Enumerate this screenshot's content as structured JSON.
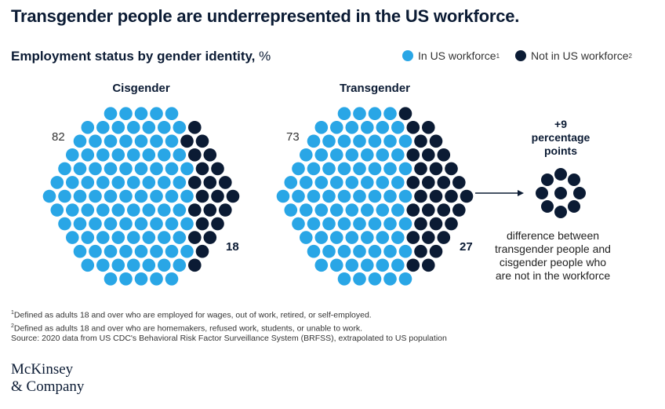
{
  "title": "Transgender people are underrepresented in the US workforce.",
  "subtitle": "Employment status by gender identity,",
  "subtitle_unit": "%",
  "legend": [
    {
      "label": "In US workforce",
      "sup": "1",
      "color": "#29a6e6"
    },
    {
      "label": "Not in US workforce",
      "sup": "2",
      "color": "#0b1b34"
    }
  ],
  "chart_data": {
    "type": "pie",
    "series": [
      {
        "name": "Cisgender",
        "values": [
          82,
          18
        ]
      },
      {
        "name": "Transgender",
        "values": [
          73,
          27
        ]
      }
    ],
    "categories": [
      "In US workforce",
      "Not in US workforce"
    ],
    "difference": {
      "value": "+9",
      "label": "percentage points",
      "dots": 9
    }
  },
  "labels": {
    "cis_in": "82",
    "cis_out": "18",
    "trans_in": "73",
    "trans_out": "27",
    "diff_value": "+9",
    "diff_line1": "percentage",
    "diff_line2": "points"
  },
  "note": "difference between transgender people and cisgender people who are not in the workforce",
  "footnotes": [
    {
      "sup": "1",
      "text": "Defined as adults 18 and over who are employed for wages, out of work, retired, or self-employed."
    },
    {
      "sup": "2",
      "text": "Defined as adults 18 and over who are homemakers, refused work, students, or unable to work."
    },
    {
      "sup": "",
      "text": " Source: 2020 data from US CDC's Behavioral Risk Factor Surveillance System (BRFSS), extrapolated to US population"
    }
  ],
  "logo": {
    "line1": "McKinsey",
    "line2": "& Company"
  }
}
